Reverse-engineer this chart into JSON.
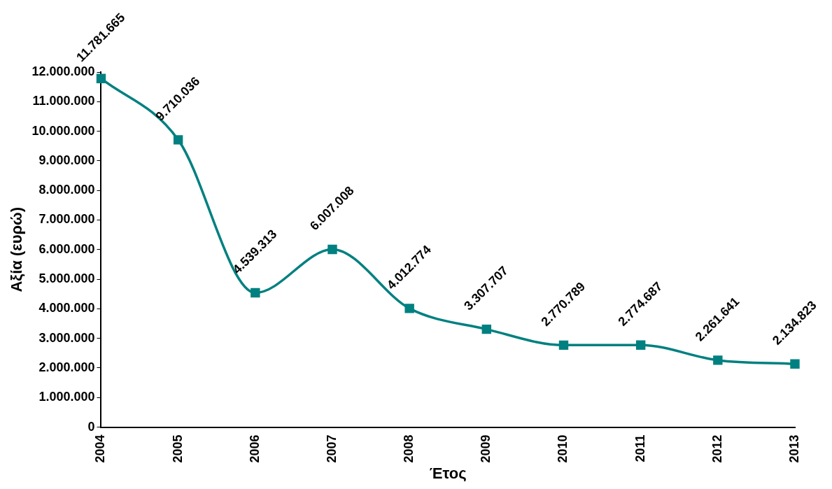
{
  "chart_data": {
    "type": "line",
    "xlabel": "Έτος",
    "ylabel": "Αξία (ευρώ)",
    "categories": [
      "2004",
      "2005",
      "2006",
      "2007",
      "2008",
      "2009",
      "2010",
      "2011",
      "2012",
      "2013"
    ],
    "series": [
      {
        "color": "#008080",
        "values": [
          11781665,
          9710036,
          4539313,
          6007008,
          4012774,
          3307707,
          2770789,
          2774687,
          2261641,
          2134823
        ],
        "value_labels": [
          "11.781.665",
          "9.710.036",
          "4.539.313",
          "6.007.008",
          "4.012.774",
          "3.307.707",
          "2.770.789",
          "2.774.687",
          "2.261.641",
          "2.134.823"
        ]
      }
    ],
    "ylim": [
      0,
      12000000
    ],
    "yticks": [
      {
        "value": 0,
        "label": "0"
      },
      {
        "value": 1000000,
        "label": "1.000.000"
      },
      {
        "value": 2000000,
        "label": "2.000.000"
      },
      {
        "value": 3000000,
        "label": "3.000.000"
      },
      {
        "value": 4000000,
        "label": "4.000.000"
      },
      {
        "value": 5000000,
        "label": "5.000.000"
      },
      {
        "value": 6000000,
        "label": "6.000.000"
      },
      {
        "value": 7000000,
        "label": "7.000.000"
      },
      {
        "value": 8000000,
        "label": "8.000.000"
      },
      {
        "value": 9000000,
        "label": "9.000.000"
      },
      {
        "value": 10000000,
        "label": "10.000.000"
      },
      {
        "value": 11000000,
        "label": "11.000.000"
      },
      {
        "value": 12000000,
        "label": "12.000.000"
      }
    ],
    "grid": false,
    "legend": false,
    "marker": "square",
    "line_style": "solid"
  }
}
